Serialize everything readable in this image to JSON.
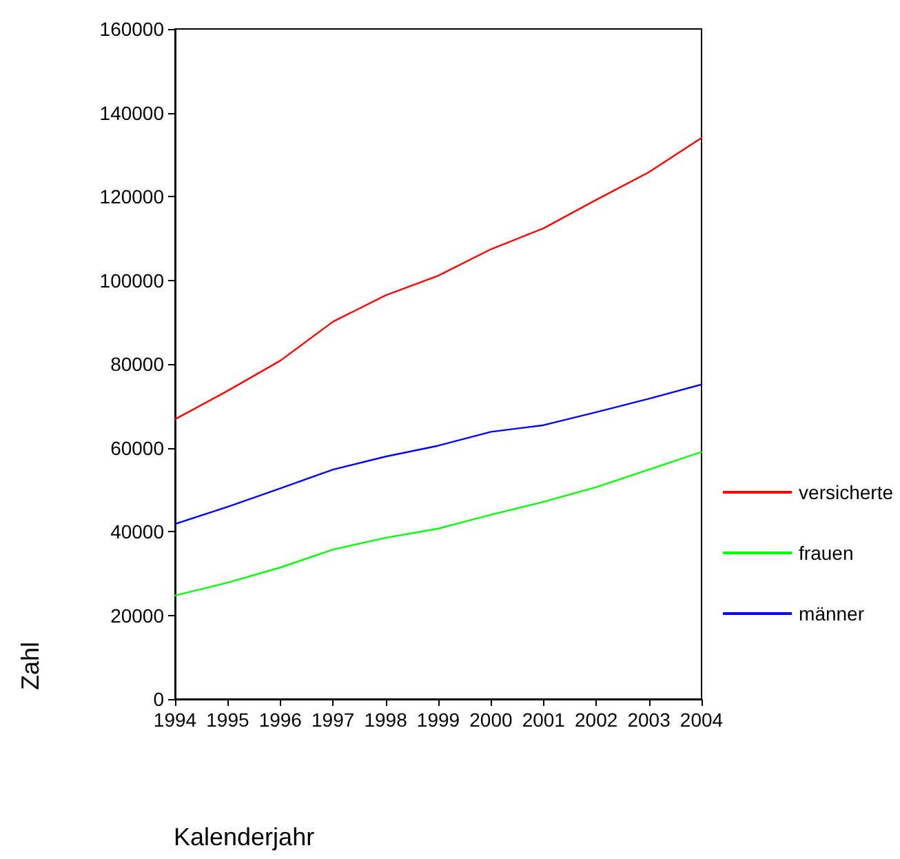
{
  "chart_data": {
    "type": "line",
    "xlabel": "Kalenderjahr",
    "ylabel": "Zahl",
    "x": [
      1994,
      1995,
      1996,
      1997,
      1998,
      1999,
      2000,
      2001,
      2002,
      2003,
      2004
    ],
    "series": [
      {
        "name": "versicherte",
        "color": "#ff0000",
        "values": [
          66800,
          73600,
          80800,
          90100,
          96400,
          101100,
          107400,
          112400,
          119200,
          125800,
          134000
        ]
      },
      {
        "name": "frauen",
        "color": "#00ff00",
        "values": [
          24700,
          27800,
          31400,
          35700,
          38500,
          40700,
          44000,
          47100,
          50600,
          54800,
          59000
        ]
      },
      {
        "name": "männer",
        "color": "#0000ff",
        "values": [
          41800,
          45900,
          50300,
          54800,
          57900,
          60500,
          63800,
          65400,
          68500,
          71700,
          75100
        ]
      }
    ],
    "xlim": [
      1994,
      2004
    ],
    "xticks": [
      1994,
      1995,
      1996,
      1997,
      1998,
      1999,
      2000,
      2001,
      2002,
      2003,
      2004
    ],
    "ylim": [
      0,
      160000
    ],
    "yticks": [
      0,
      20000,
      40000,
      60000,
      80000,
      100000,
      120000,
      140000,
      160000
    ],
    "grid": false,
    "legend": "right",
    "marker": "none",
    "line_style": "solid"
  }
}
